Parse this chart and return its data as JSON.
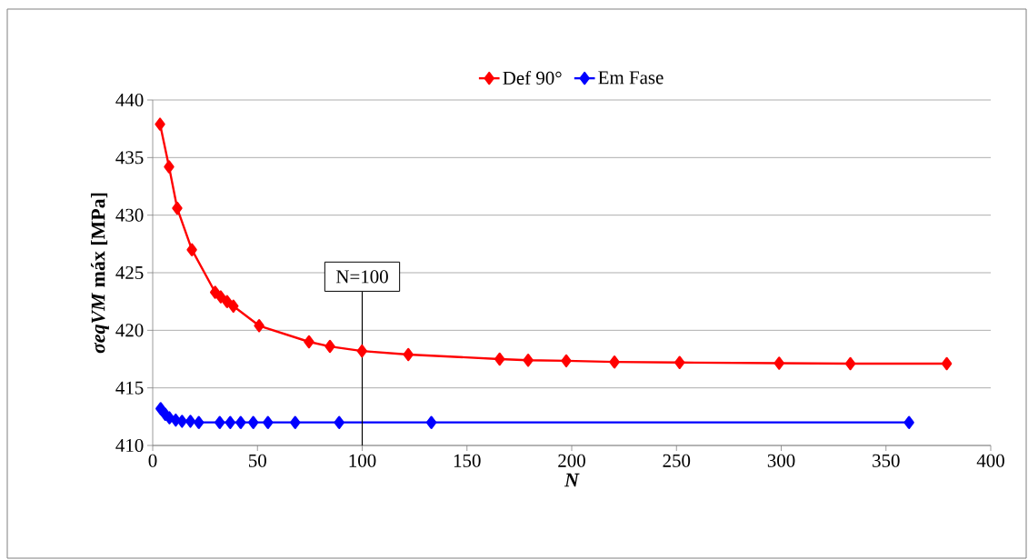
{
  "chart_data": {
    "type": "line",
    "xlabel": "N",
    "ylabel": "*σeqVM* máx [MPa]",
    "xlim": [
      0,
      400
    ],
    "xticks": [
      0,
      50,
      100,
      150,
      200,
      250,
      300,
      350,
      400
    ],
    "ylim": [
      410,
      440
    ],
    "yticks": [
      410,
      415,
      420,
      425,
      430,
      435,
      440
    ],
    "grid": "y",
    "legend": "top",
    "marker": "diamond",
    "line_style": "solid",
    "ref_lines": [
      {
        "axis": "x",
        "value": 100,
        "label": "N=100",
        "color": "#000000"
      }
    ],
    "series": [
      {
        "name": "Def 90°",
        "color": "#ff0000",
        "x": [
          3.5,
          7.8,
          11.7,
          18.7,
          29.8,
          32.5,
          35.5,
          38.5,
          50.8,
          74.6,
          84.6,
          99.9,
          122,
          165.6,
          179.2,
          197.4,
          220.4,
          251.5,
          299,
          333,
          379
        ],
        "values": [
          437.9,
          434.2,
          430.6,
          427.0,
          423.3,
          422.9,
          422.5,
          422.1,
          420.4,
          419.0,
          418.6,
          418.2,
          417.9,
          417.5,
          417.4,
          417.35,
          417.25,
          417.2,
          417.15,
          417.1,
          417.1
        ]
      },
      {
        "name": "Em Fase",
        "color": "#0000ff",
        "x": [
          3.8,
          6,
          8,
          11,
          14,
          18,
          22,
          32,
          37,
          42,
          48,
          55,
          68,
          89,
          133,
          361
        ],
        "values": [
          413.2,
          412.7,
          412.4,
          412.2,
          412.1,
          412.1,
          412.0,
          412.0,
          412.0,
          412.0,
          412.0,
          412.0,
          412.0,
          412.0,
          412.0,
          412.0
        ]
      }
    ]
  }
}
